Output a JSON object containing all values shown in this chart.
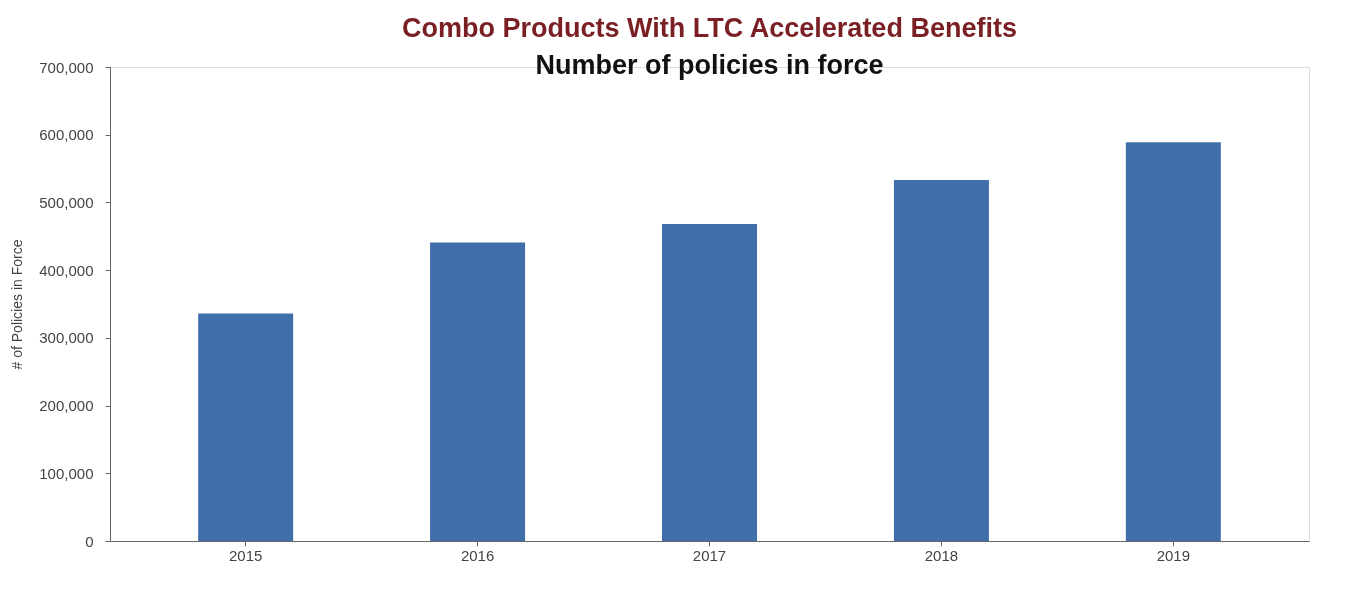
{
  "chart_data": {
    "type": "bar",
    "title": "Combo Products With LTC Accelerated Benefits",
    "subtitle": "Number of policies in force",
    "ylabel": "# of Policies in Force",
    "categories": [
      "2015",
      "2016",
      "2017",
      "2018",
      "2019"
    ],
    "values": [
      336000,
      441000,
      468000,
      533000,
      589000
    ],
    "color": "#3f6eaa",
    "ylim": [
      0,
      700000
    ],
    "yticks": [
      0,
      {
        "value": 100000,
        "label": "100,000"
      },
      {
        "value": 200000,
        "label": "200,000"
      },
      {
        "value": 300000,
        "label": "300,000"
      },
      {
        "value": 400000,
        "label": "400,000"
      },
      {
        "value": 500000,
        "label": "500,000"
      },
      {
        "value": 600000,
        "label": "600,000"
      },
      {
        "value": 700000,
        "label": "700,000"
      }
    ],
    "grid": false
  }
}
